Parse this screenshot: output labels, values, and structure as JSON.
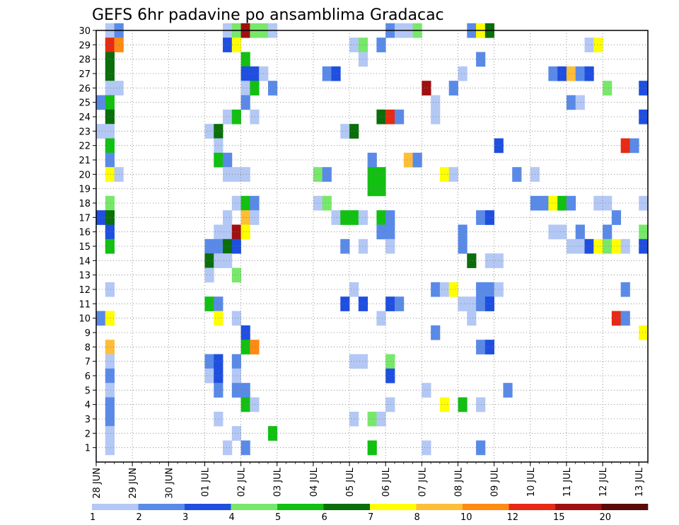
{
  "chart_data": {
    "type": "heatmap",
    "title": "GEFS 6hr padavine po ansamblima Gradacac",
    "x_ticks": [
      "28 JUN",
      "29 JUN",
      "30 JUN",
      "01 JUL",
      "02 JUL",
      "03 JUL",
      "04 JUL",
      "05 JUL",
      "06 JUL",
      "07 JUL",
      "08 JUL",
      "09 JUL",
      "10 JUL",
      "11 JUL",
      "12 JUL",
      "13 JUL"
    ],
    "y_ticks": [
      "1",
      "2",
      "3",
      "4",
      "5",
      "6",
      "7",
      "8",
      "9",
      "10",
      "11",
      "12",
      "13",
      "14",
      "15",
      "16",
      "17",
      "18",
      "19",
      "20",
      "21",
      "22",
      "23",
      "24",
      "25",
      "26",
      "27",
      "28",
      "29",
      "30"
    ],
    "x_range": [
      0,
      61
    ],
    "y_range": [
      0,
      30
    ],
    "steps_per_day": 4,
    "grid": true,
    "colorbar": {
      "labels": [
        "1",
        "2",
        "3",
        "4",
        "5",
        "6",
        "7",
        "8",
        "10",
        "12",
        "15",
        "20"
      ],
      "colors": [
        "#b4c8f5",
        "#5a8ae8",
        "#1f4fe0",
        "#78e86a",
        "#12c012",
        "#0a6e0a",
        "#ffff00",
        "#ffbe37",
        "#ff8a14",
        "#e62a14",
        "#a01010",
        "#5a0a0a"
      ]
    },
    "cells": [
      [
        1,
        30,
        "c1"
      ],
      [
        2,
        30,
        "c2"
      ],
      [
        14,
        30,
        "c1"
      ],
      [
        15,
        30,
        "c4"
      ],
      [
        16,
        30,
        "c11"
      ],
      [
        17,
        30,
        "c4"
      ],
      [
        18,
        30,
        "c4"
      ],
      [
        19,
        30,
        "c1"
      ],
      [
        32,
        30,
        "c2"
      ],
      [
        33,
        30,
        "c1"
      ],
      [
        34,
        30,
        "c1"
      ],
      [
        35,
        30,
        "c4"
      ],
      [
        41,
        30,
        "c2"
      ],
      [
        42,
        30,
        "c7"
      ],
      [
        43,
        30,
        "c6"
      ],
      [
        1,
        29,
        "c10"
      ],
      [
        2,
        29,
        "c9"
      ],
      [
        14,
        29,
        "c3"
      ],
      [
        15,
        29,
        "c7"
      ],
      [
        28,
        29,
        "c1"
      ],
      [
        29,
        29,
        "c4"
      ],
      [
        31,
        29,
        "c2"
      ],
      [
        54,
        29,
        "c1"
      ],
      [
        55,
        29,
        "c7"
      ],
      [
        1,
        28,
        "c6"
      ],
      [
        16,
        28,
        "c5"
      ],
      [
        29,
        28,
        "c1"
      ],
      [
        42,
        28,
        "c2"
      ],
      [
        1,
        27,
        "c6"
      ],
      [
        16,
        27,
        "c3"
      ],
      [
        17,
        27,
        "c3"
      ],
      [
        18,
        27,
        "c1"
      ],
      [
        25,
        27,
        "c2"
      ],
      [
        26,
        27,
        "c3"
      ],
      [
        40,
        27,
        "c1"
      ],
      [
        50,
        27,
        "c2"
      ],
      [
        51,
        27,
        "c3"
      ],
      [
        52,
        27,
        "c8"
      ],
      [
        53,
        27,
        "c2"
      ],
      [
        54,
        27,
        "c3"
      ],
      [
        1,
        26,
        "c1"
      ],
      [
        2,
        26,
        "c1"
      ],
      [
        16,
        26,
        "c1"
      ],
      [
        17,
        26,
        "c5"
      ],
      [
        19,
        26,
        "c2"
      ],
      [
        36,
        26,
        "c11"
      ],
      [
        39,
        26,
        "c2"
      ],
      [
        56,
        26,
        "c4"
      ],
      [
        60,
        26,
        "c3"
      ],
      [
        0,
        25,
        "c2"
      ],
      [
        1,
        25,
        "c5"
      ],
      [
        16,
        25,
        "c2"
      ],
      [
        37,
        25,
        "c1"
      ],
      [
        52,
        25,
        "c2"
      ],
      [
        53,
        25,
        "c1"
      ],
      [
        1,
        24,
        "c6"
      ],
      [
        14,
        24,
        "c1"
      ],
      [
        15,
        24,
        "c5"
      ],
      [
        17,
        24,
        "c1"
      ],
      [
        31,
        24,
        "c6"
      ],
      [
        32,
        24,
        "c10"
      ],
      [
        33,
        24,
        "c2"
      ],
      [
        37,
        24,
        "c1"
      ],
      [
        60,
        24,
        "c3"
      ],
      [
        0,
        23,
        "c1"
      ],
      [
        1,
        23,
        "c1"
      ],
      [
        12,
        23,
        "c1"
      ],
      [
        13,
        23,
        "c6"
      ],
      [
        27,
        23,
        "c1"
      ],
      [
        28,
        23,
        "c6"
      ],
      [
        1,
        22,
        "c5"
      ],
      [
        13,
        22,
        "c1"
      ],
      [
        44,
        22,
        "c3"
      ],
      [
        58,
        22,
        "c10"
      ],
      [
        59,
        22,
        "c2"
      ],
      [
        1,
        21,
        "c2"
      ],
      [
        13,
        21,
        "c5"
      ],
      [
        14,
        21,
        "c2"
      ],
      [
        30,
        21,
        "c2"
      ],
      [
        34,
        21,
        "c8"
      ],
      [
        35,
        21,
        "c2"
      ],
      [
        1,
        20,
        "c7"
      ],
      [
        2,
        20,
        "c1"
      ],
      [
        14,
        20,
        "c1"
      ],
      [
        15,
        20,
        "c1"
      ],
      [
        16,
        20,
        "c1"
      ],
      [
        24,
        20,
        "c4"
      ],
      [
        25,
        20,
        "c2"
      ],
      [
        30,
        20,
        "c5"
      ],
      [
        31,
        20,
        "c5"
      ],
      [
        38,
        20,
        "c7"
      ],
      [
        39,
        20,
        "c1"
      ],
      [
        46,
        20,
        "c2"
      ],
      [
        48,
        20,
        "c1"
      ],
      [
        30,
        19,
        "c5"
      ],
      [
        31,
        19,
        "c5"
      ],
      [
        1,
        18,
        "c4"
      ],
      [
        15,
        18,
        "c1"
      ],
      [
        16,
        18,
        "c5"
      ],
      [
        17,
        18,
        "c2"
      ],
      [
        24,
        18,
        "c1"
      ],
      [
        25,
        18,
        "c4"
      ],
      [
        48,
        18,
        "c2"
      ],
      [
        49,
        18,
        "c2"
      ],
      [
        50,
        18,
        "c7"
      ],
      [
        51,
        18,
        "c5"
      ],
      [
        52,
        18,
        "c2"
      ],
      [
        55,
        18,
        "c1"
      ],
      [
        56,
        18,
        "c1"
      ],
      [
        60,
        18,
        "c1"
      ],
      [
        0,
        17,
        "c3"
      ],
      [
        1,
        17,
        "c6"
      ],
      [
        14,
        17,
        "c1"
      ],
      [
        16,
        17,
        "c8"
      ],
      [
        17,
        17,
        "c1"
      ],
      [
        26,
        17,
        "c1"
      ],
      [
        27,
        17,
        "c5"
      ],
      [
        28,
        17,
        "c5"
      ],
      [
        29,
        17,
        "c1"
      ],
      [
        31,
        17,
        "c5"
      ],
      [
        32,
        17,
        "c2"
      ],
      [
        42,
        17,
        "c2"
      ],
      [
        43,
        17,
        "c3"
      ],
      [
        57,
        17,
        "c2"
      ],
      [
        1,
        16,
        "c3"
      ],
      [
        13,
        16,
        "c1"
      ],
      [
        14,
        16,
        "c1"
      ],
      [
        15,
        16,
        "c11"
      ],
      [
        16,
        16,
        "c7"
      ],
      [
        31,
        16,
        "c2"
      ],
      [
        32,
        16,
        "c2"
      ],
      [
        40,
        16,
        "c2"
      ],
      [
        50,
        16,
        "c1"
      ],
      [
        51,
        16,
        "c1"
      ],
      [
        53,
        16,
        "c2"
      ],
      [
        56,
        16,
        "c2"
      ],
      [
        60,
        16,
        "c4"
      ],
      [
        1,
        15,
        "c5"
      ],
      [
        12,
        15,
        "c2"
      ],
      [
        13,
        15,
        "c2"
      ],
      [
        14,
        15,
        "c6"
      ],
      [
        15,
        15,
        "c3"
      ],
      [
        27,
        15,
        "c2"
      ],
      [
        29,
        15,
        "c1"
      ],
      [
        32,
        15,
        "c1"
      ],
      [
        40,
        15,
        "c2"
      ],
      [
        52,
        15,
        "c1"
      ],
      [
        53,
        15,
        "c1"
      ],
      [
        54,
        15,
        "c3"
      ],
      [
        55,
        15,
        "c7"
      ],
      [
        56,
        15,
        "c4"
      ],
      [
        57,
        15,
        "c7"
      ],
      [
        58,
        15,
        "c1"
      ],
      [
        60,
        15,
        "c3"
      ],
      [
        12,
        14,
        "c6"
      ],
      [
        13,
        14,
        "c1"
      ],
      [
        14,
        14,
        "c1"
      ],
      [
        41,
        14,
        "c6"
      ],
      [
        43,
        14,
        "c1"
      ],
      [
        44,
        14,
        "c1"
      ],
      [
        12,
        13,
        "c1"
      ],
      [
        15,
        13,
        "c4"
      ],
      [
        1,
        12,
        "c1"
      ],
      [
        28,
        12,
        "c1"
      ],
      [
        37,
        12,
        "c2"
      ],
      [
        38,
        12,
        "c1"
      ],
      [
        39,
        12,
        "c7"
      ],
      [
        42,
        12,
        "c2"
      ],
      [
        43,
        12,
        "c2"
      ],
      [
        44,
        12,
        "c1"
      ],
      [
        58,
        12,
        "c2"
      ],
      [
        12,
        11,
        "c5"
      ],
      [
        13,
        11,
        "c2"
      ],
      [
        27,
        11,
        "c3"
      ],
      [
        29,
        11,
        "c3"
      ],
      [
        32,
        11,
        "c3"
      ],
      [
        33,
        11,
        "c2"
      ],
      [
        40,
        11,
        "c1"
      ],
      [
        41,
        11,
        "c1"
      ],
      [
        42,
        11,
        "c2"
      ],
      [
        43,
        11,
        "c3"
      ],
      [
        0,
        10,
        "c2"
      ],
      [
        1,
        10,
        "c7"
      ],
      [
        13,
        10,
        "c7"
      ],
      [
        15,
        10,
        "c1"
      ],
      [
        31,
        10,
        "c1"
      ],
      [
        41,
        10,
        "c1"
      ],
      [
        57,
        10,
        "c10"
      ],
      [
        58,
        10,
        "c2"
      ],
      [
        16,
        9,
        "c3"
      ],
      [
        37,
        9,
        "c2"
      ],
      [
        60,
        9,
        "c7"
      ],
      [
        1,
        8,
        "c8"
      ],
      [
        16,
        8,
        "c5"
      ],
      [
        17,
        8,
        "c9"
      ],
      [
        42,
        8,
        "c2"
      ],
      [
        43,
        8,
        "c3"
      ],
      [
        1,
        7,
        "c1"
      ],
      [
        12,
        7,
        "c2"
      ],
      [
        13,
        7,
        "c3"
      ],
      [
        15,
        7,
        "c2"
      ],
      [
        28,
        7,
        "c1"
      ],
      [
        29,
        7,
        "c1"
      ],
      [
        32,
        7,
        "c4"
      ],
      [
        1,
        6,
        "c2"
      ],
      [
        12,
        6,
        "c1"
      ],
      [
        13,
        6,
        "c3"
      ],
      [
        15,
        6,
        "c1"
      ],
      [
        32,
        6,
        "c3"
      ],
      [
        1,
        5,
        "c1"
      ],
      [
        13,
        5,
        "c2"
      ],
      [
        15,
        5,
        "c2"
      ],
      [
        16,
        5,
        "c2"
      ],
      [
        36,
        5,
        "c1"
      ],
      [
        45,
        5,
        "c2"
      ],
      [
        1,
        4,
        "c2"
      ],
      [
        16,
        4,
        "c5"
      ],
      [
        17,
        4,
        "c1"
      ],
      [
        32,
        4,
        "c1"
      ],
      [
        38,
        4,
        "c7"
      ],
      [
        40,
        4,
        "c5"
      ],
      [
        42,
        4,
        "c1"
      ],
      [
        1,
        3,
        "c2"
      ],
      [
        13,
        3,
        "c1"
      ],
      [
        28,
        3,
        "c1"
      ],
      [
        30,
        3,
        "c4"
      ],
      [
        31,
        3,
        "c1"
      ],
      [
        1,
        2,
        "c1"
      ],
      [
        15,
        2,
        "c1"
      ],
      [
        19,
        2,
        "c5"
      ],
      [
        1,
        1,
        "c1"
      ],
      [
        14,
        1,
        "c1"
      ],
      [
        16,
        1,
        "c2"
      ],
      [
        30,
        1,
        "c5"
      ],
      [
        36,
        1,
        "c1"
      ],
      [
        42,
        1,
        "c2"
      ]
    ]
  }
}
